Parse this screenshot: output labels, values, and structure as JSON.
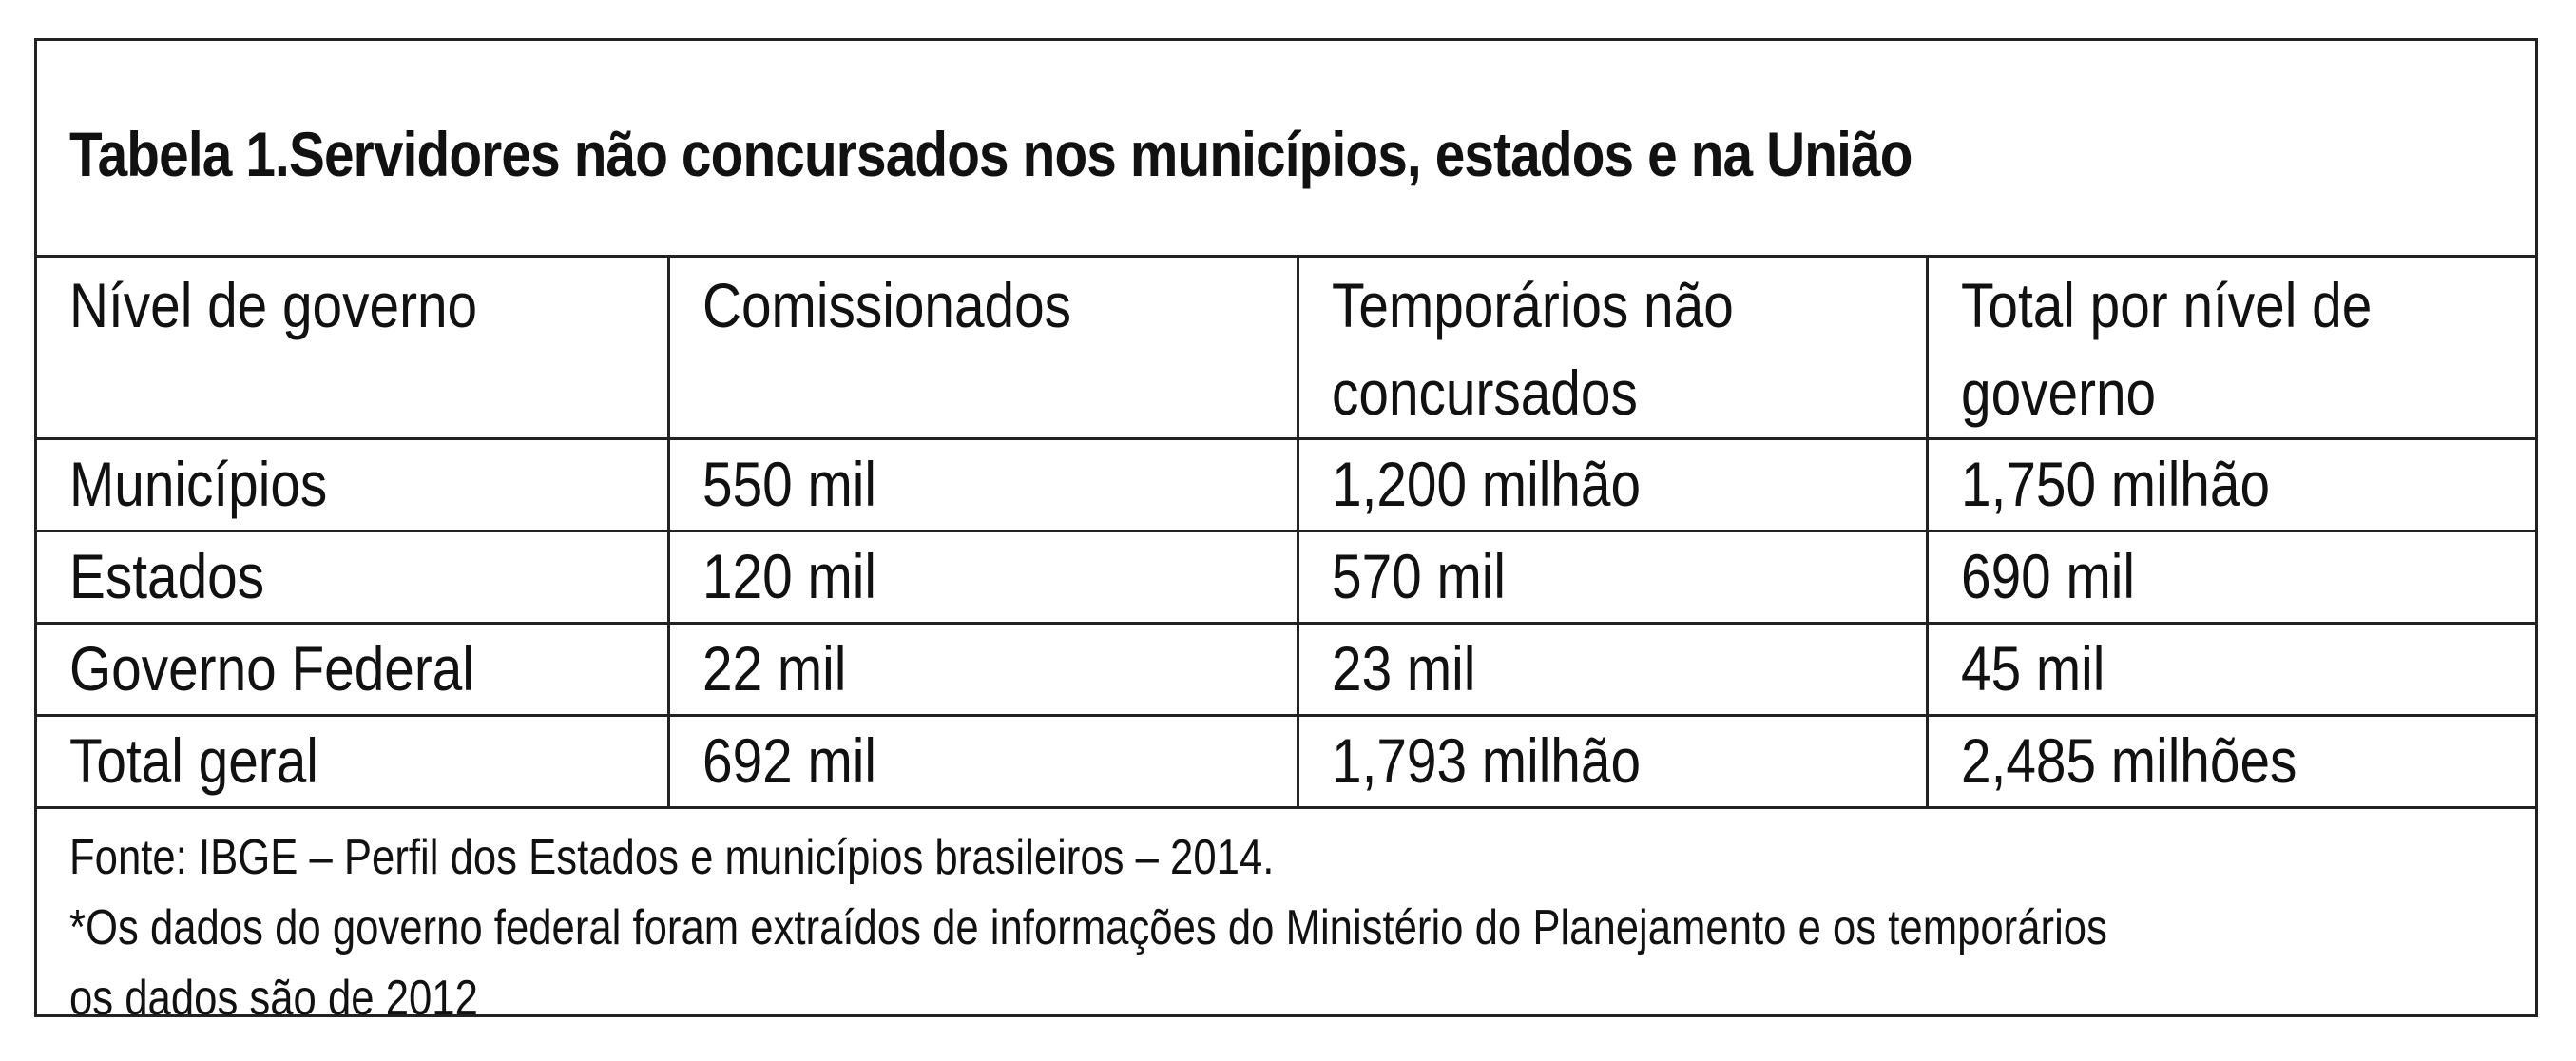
{
  "table": {
    "title": "Tabela 1.Servidores não concursados nos municípios, estados e na União",
    "headers": [
      "Nível de governo",
      "Comissionados",
      "Temporários não concursados",
      "Total por nível de governo"
    ],
    "rows": [
      [
        "Municípios",
        "550 mil",
        "1,200 milhão",
        "1,750 milhão"
      ],
      [
        "Estados",
        "120 mil",
        "570 mil",
        "690 mil"
      ],
      [
        "Governo Federal",
        "22 mil",
        "23 mil",
        "45 mil"
      ],
      [
        "Total geral",
        "692 mil",
        "1,793 milhão",
        "2,485 milhões"
      ]
    ],
    "footnotes": [
      "Fonte: IBGE – Perfil dos Estados e municípios brasileiros – 2014.",
      "*Os dados do governo federal foram extraídos de informações do Ministério do Planejamento e os temporários",
      "os dados são de 2012"
    ]
  }
}
